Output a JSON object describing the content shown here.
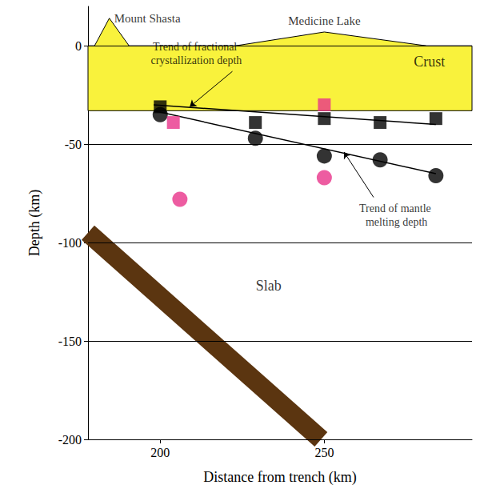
{
  "chart_data": {
    "type": "scatter",
    "xlabel": "Distance from trench (km)",
    "ylabel": "Depth (km)",
    "xlim": [
      178,
      295
    ],
    "xticks": [
      200,
      250
    ],
    "ylim": [
      -200,
      20
    ],
    "yticks": [
      -200,
      -150,
      -100,
      -50,
      0
    ],
    "grid": true,
    "series": [
      {
        "type": "scatter",
        "marker": "square",
        "color": "#000000",
        "x": [
          200,
          229,
          250,
          267,
          284
        ],
        "values": [
          -31,
          -39,
          -37,
          -39,
          -37
        ]
      },
      {
        "type": "scatter",
        "marker": "circle",
        "color": "#000000",
        "x": [
          200,
          229,
          250,
          267,
          284
        ],
        "values": [
          -35,
          -47,
          -56,
          -58,
          -66
        ]
      },
      {
        "type": "scatter",
        "marker": "square",
        "color": "#e8338a",
        "x": [
          204,
          250
        ],
        "values": [
          -39,
          -30
        ]
      },
      {
        "type": "scatter",
        "marker": "circle",
        "color": "#e8338a",
        "x": [
          206,
          250
        ],
        "values": [
          -78,
          -67
        ]
      },
      {
        "type": "line",
        "name": "Trend of fractional crystallization depth",
        "color": "#000000",
        "x": [
          198,
          284
        ],
        "values": [
          -30,
          -40
        ]
      },
      {
        "type": "line",
        "name": "Trend of mantle melting depth",
        "color": "#000000",
        "x": [
          198,
          284
        ],
        "values": [
          -33,
          -65
        ]
      }
    ],
    "crust": {
      "label": "Crust",
      "color": "#f9f23c",
      "top": 0,
      "bottom": -33
    },
    "slab": {
      "label": "Slab",
      "color": "#5b3510",
      "x": [
        178,
        249
      ],
      "y": [
        -95,
        -200
      ]
    },
    "volcanoes": [
      {
        "label": "Mount Shasta",
        "x": [
          180,
          184.5,
          190.5
        ],
        "y": [
          0,
          14,
          0
        ]
      },
      {
        "label": "Medicine Lake",
        "x": [
          223,
          250,
          281
        ],
        "y": [
          0,
          7,
          0
        ]
      }
    ]
  }
}
